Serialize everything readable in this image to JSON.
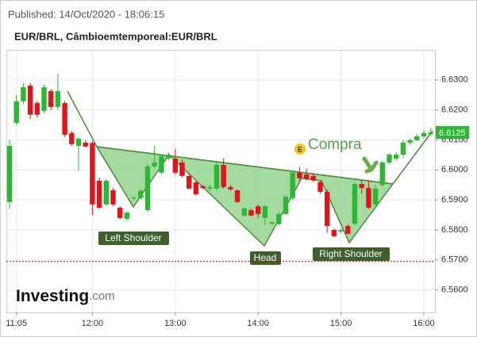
{
  "chart_data": {
    "type": "candlestick",
    "subtitle": "Published: 14/Oct/2020 - 18:06:15",
    "title": "EUR/BRL, Câmbioemtemporeal:EUR/BRL",
    "x": [
      "11:00",
      "11:05",
      "11:10",
      "11:15",
      "11:20",
      "11:25",
      "11:30",
      "11:35",
      "11:40",
      "11:45",
      "11:50",
      "11:55",
      "12:00",
      "12:05",
      "12:10",
      "12:15",
      "12:20",
      "12:25",
      "12:30",
      "12:35",
      "12:40",
      "12:45",
      "12:50",
      "12:55",
      "13:00",
      "13:05",
      "13:10",
      "13:15",
      "13:20",
      "13:25",
      "13:30",
      "13:35",
      "13:40",
      "13:45",
      "13:50",
      "13:55",
      "14:00",
      "14:05",
      "14:10",
      "14:15",
      "14:20",
      "14:25",
      "14:30",
      "14:35",
      "14:40",
      "14:45",
      "14:50",
      "14:55",
      "15:00",
      "15:05",
      "15:10",
      "15:15",
      "15:20",
      "15:25",
      "15:30",
      "15:35",
      "15:40",
      "15:45",
      "15:50",
      "15:55",
      "16:00",
      "16:05"
    ],
    "open": [
      6.5893,
      6.6157,
      6.6229,
      6.6281,
      6.6223,
      6.6197,
      6.6263,
      6.621,
      6.6223,
      6.6123,
      6.608,
      6.6091,
      6.609,
      6.5964,
      6.5885,
      6.5932,
      6.5874,
      6.5837,
      6.5905,
      6.5906,
      6.5866,
      6.6012,
      6.5991,
      6.6038,
      6.6038,
      6.6025,
      6.598,
      6.5959,
      6.5946,
      6.5938,
      6.5938,
      6.6017,
      6.5943,
      6.5932,
      6.5848,
      6.5866,
      6.5879,
      6.584,
      6.5821,
      6.5819,
      6.5853,
      6.5906,
      6.5991,
      6.5985,
      6.598,
      6.596,
      6.5927,
      6.58,
      6.5795,
      6.5813,
      6.5821,
      6.5953,
      6.594,
      6.5885,
      6.595,
      6.6025,
      6.6038,
      6.6051,
      6.6091,
      6.6099,
      6.6112,
      6.612
    ],
    "high": [
      6.61,
      6.625,
      6.629,
      6.629,
      6.623,
      6.6285,
      6.627,
      6.6321,
      6.623,
      6.613,
      6.611,
      6.61,
      6.6095,
      6.5975,
      6.597,
      6.594,
      6.588,
      6.5862,
      6.5912,
      6.5935,
      6.602,
      6.608,
      6.605,
      6.606,
      6.607,
      6.6035,
      6.599,
      6.5965,
      6.595,
      6.595,
      6.603,
      6.604,
      6.595,
      6.5935,
      6.5875,
      6.587,
      6.5885,
      6.5882,
      6.583,
      6.586,
      6.5915,
      6.5995,
      6.601,
      6.6005,
      6.599,
      6.5965,
      6.5935,
      6.5805,
      6.5805,
      6.582,
      6.596,
      6.5965,
      6.5965,
      6.595,
      6.603,
      6.6055,
      6.606,
      6.61,
      6.6105,
      6.612,
      6.6135,
      6.614
    ],
    "low": [
      6.587,
      6.615,
      6.622,
      6.617,
      6.6175,
      6.619,
      6.62,
      6.62,
      6.611,
      6.608,
      6.5998,
      6.6075,
      6.585,
      6.587,
      6.588,
      6.588,
      6.5835,
      6.583,
      6.59,
      6.59,
      6.586,
      6.6005,
      6.5985,
      6.603,
      6.5985,
      6.5975,
      6.5935,
      6.5915,
      6.5935,
      6.593,
      6.593,
      6.5938,
      6.593,
      6.589,
      6.5845,
      6.5845,
      6.584,
      6.5815,
      6.5815,
      6.5815,
      6.585,
      6.59,
      6.5965,
      6.5965,
      6.596,
      6.592,
      6.579,
      6.5775,
      6.579,
      6.5785,
      6.5815,
      6.592,
      6.587,
      6.587,
      6.5945,
      6.602,
      6.603,
      6.604,
      6.6085,
      6.6095,
      6.6105,
      6.6115
    ],
    "close": [
      6.608,
      6.6229,
      6.6276,
      6.6184,
      6.6184,
      6.6276,
      6.621,
      6.6263,
      6.6117,
      6.6086,
      6.6104,
      6.6078,
      6.5885,
      6.5874,
      6.5964,
      6.5885,
      6.584,
      6.5858,
      6.5908,
      6.593,
      6.6012,
      6.6025,
      6.6046,
      6.6046,
      6.5991,
      6.598,
      6.5938,
      6.5919,
      6.594,
      6.5943,
      6.6017,
      6.5943,
      6.5935,
      6.5893,
      6.5872,
      6.5848,
      6.5853,
      6.5879,
      6.5826,
      6.5853,
      6.5911,
      6.5991,
      6.5972,
      6.597,
      6.5965,
      6.5927,
      6.5813,
      6.5779,
      6.58,
      6.5787,
      6.5953,
      6.594,
      6.5874,
      6.5938,
      6.6025,
      6.6051,
      6.6051,
      6.6091,
      6.6099,
      6.6112,
      6.6123,
      6.6125
    ],
    "up_color": "#2db734",
    "down_color": "#e0151c",
    "ylim": [
      6.5525,
      6.64
    ],
    "yticks": [
      {
        "value": 6.56,
        "label": "6.5600"
      },
      {
        "value": 6.57,
        "label": "6.5700"
      },
      {
        "value": 6.58,
        "label": "6.5800"
      },
      {
        "value": 6.59,
        "label": "6.5900"
      },
      {
        "value": 6.6,
        "label": "6.6000"
      },
      {
        "value": 6.61,
        "label": "6.6100"
      },
      {
        "value": 6.62,
        "label": "6.6200"
      },
      {
        "value": 6.63,
        "label": "6.6300"
      }
    ],
    "xticks": [
      "11:05",
      "12:00",
      "13:00",
      "14:00",
      "15:00",
      "16:00"
    ],
    "grid": true,
    "current_price": 6.6125,
    "reference_line": 6.5695,
    "annotations": [
      "Left Shoulder",
      "Head",
      "Right Shoulder",
      "Compra",
      "E"
    ],
    "watermark": [
      "Investing",
      ".com"
    ]
  }
}
